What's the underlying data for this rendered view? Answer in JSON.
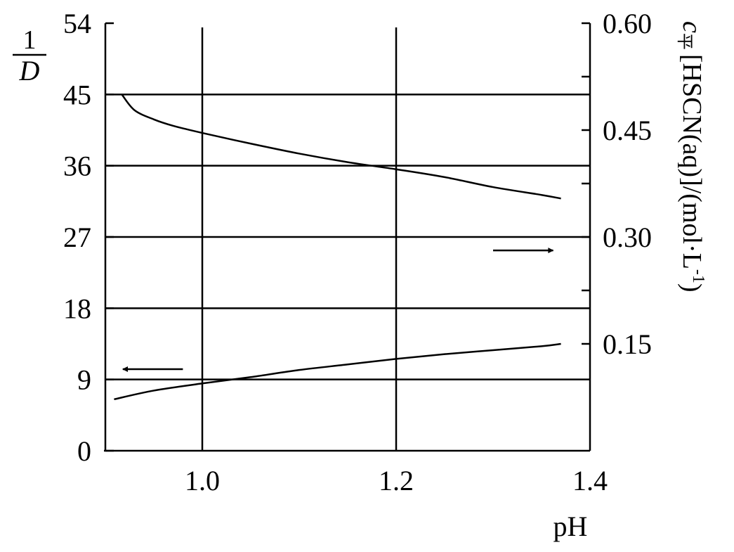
{
  "chart_data": {
    "type": "line",
    "xlabel": "pH",
    "ylabel_left": {
      "numerator": "1",
      "denominator": "D"
    },
    "ylabel_right": {
      "symbol": "c",
      "subscript": "平",
      "text": "[HSCN(aq)]/(mol·L",
      "superscript": "-1",
      "close": ")"
    },
    "xlim": [
      0.9,
      1.4
    ],
    "ylim_left": [
      0,
      54
    ],
    "ylim_right": [
      0,
      0.6
    ],
    "x_ticks": [
      "1.0",
      "1.2",
      "1.4"
    ],
    "x_tick_values": [
      1.0,
      1.2,
      1.4
    ],
    "y_left_ticks": [
      "0",
      "9",
      "18",
      "27",
      "36",
      "45",
      "54"
    ],
    "y_left_tick_values": [
      0,
      9,
      18,
      27,
      36,
      45,
      54
    ],
    "y_right_ticks": [
      "0.15",
      "0.30",
      "0.45",
      "0.60"
    ],
    "y_right_tick_values": [
      0.15,
      0.3,
      0.45,
      0.6
    ],
    "y_right_minor_ticks": [
      0.525,
      0.375,
      0.225
    ],
    "grid": true,
    "grid_x": [
      1.0,
      1.2
    ],
    "grid_y_left": [
      9,
      18,
      27,
      36,
      45
    ],
    "series": [
      {
        "axis": "right",
        "x": [
          0.917,
          0.93,
          0.95,
          0.97,
          1.0,
          1.05,
          1.1,
          1.15,
          1.2,
          1.25,
          1.3,
          1.35,
          1.37
        ],
        "y": [
          0.5,
          0.478,
          0.465,
          0.456,
          0.446,
          0.431,
          0.417,
          0.405,
          0.395,
          0.384,
          0.37,
          0.359,
          0.354
        ]
      },
      {
        "axis": "left",
        "x": [
          0.909,
          0.95,
          1.0,
          1.05,
          1.1,
          1.15,
          1.2,
          1.25,
          1.3,
          1.35,
          1.37
        ],
        "y": [
          6.5,
          7.6,
          8.5,
          9.3,
          10.2,
          10.9,
          11.6,
          12.2,
          12.7,
          13.2,
          13.5
        ]
      }
    ],
    "annotations": [
      {
        "type": "arrow",
        "direction": "left",
        "axis": "left",
        "x_from": 0.98,
        "x_to": 0.918,
        "y": 10.3
      },
      {
        "type": "arrow",
        "direction": "right",
        "axis": "left",
        "x_from": 1.3,
        "x_to": 1.362,
        "y": 25.3
      }
    ]
  }
}
